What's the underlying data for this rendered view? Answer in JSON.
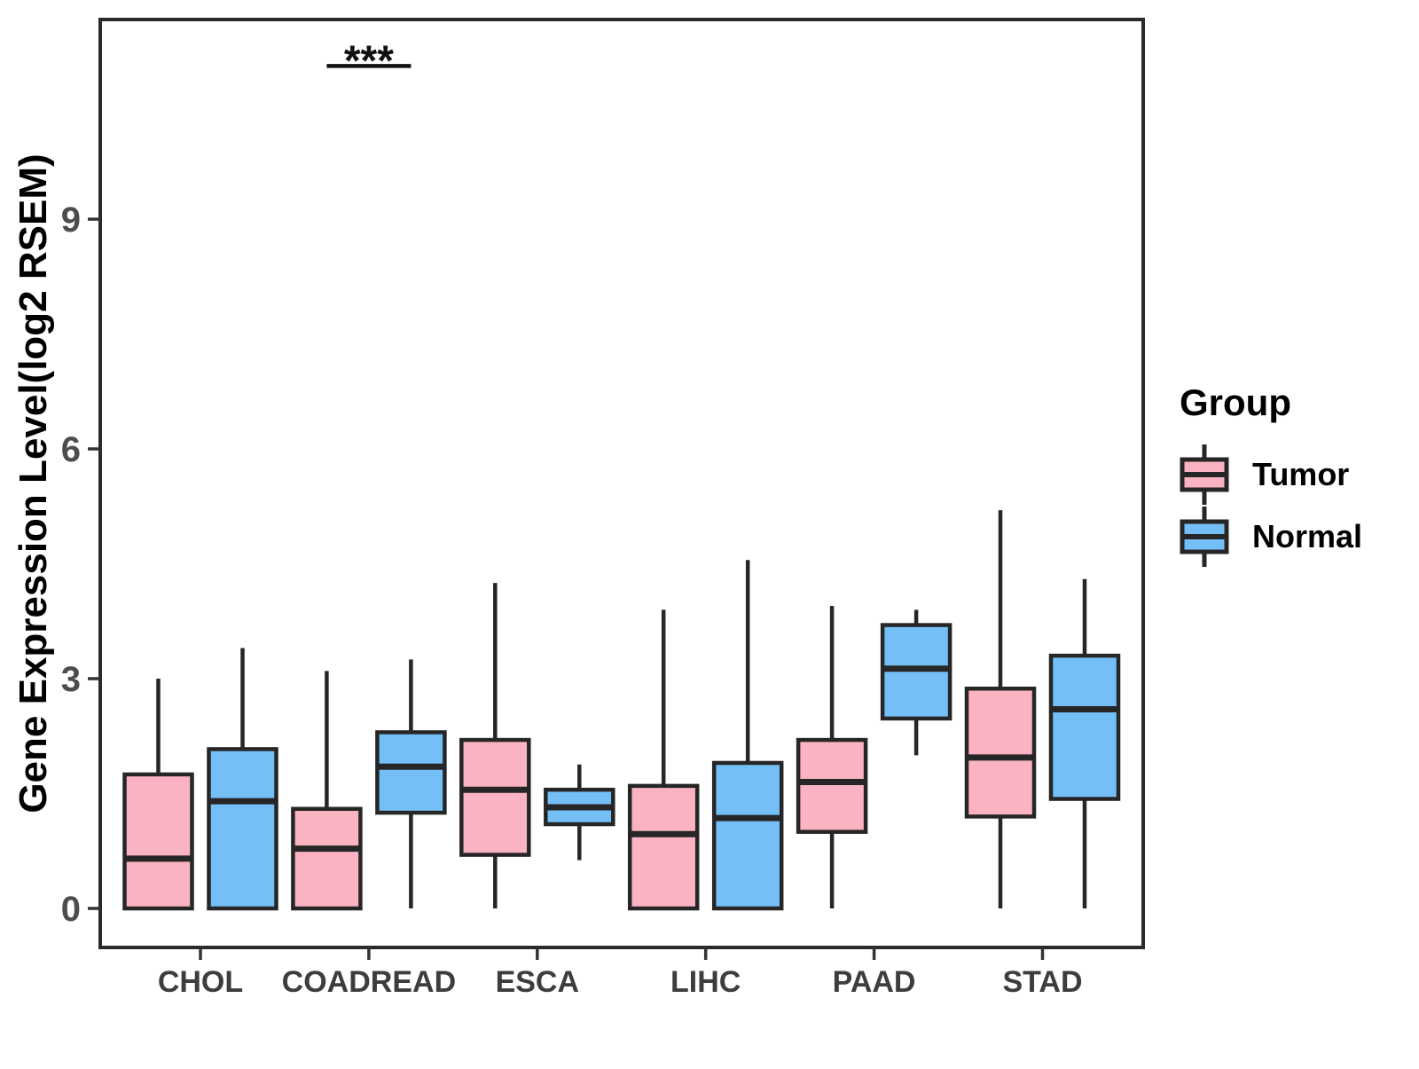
{
  "figure": {
    "background": "#FFFFFF",
    "border_color": "#2A2A2A"
  },
  "axes": {
    "y_title": "Gene Expression Level(log2 RSEM)",
    "y_tick_labels": [
      "0",
      "3",
      "6",
      "9"
    ],
    "y_tick_values": [
      0,
      3,
      6,
      9
    ],
    "x_categories": [
      "CHOL",
      "COADREAD",
      "ESCA",
      "LIHC",
      "PAAD",
      "STAD"
    ]
  },
  "legend": {
    "title": "Group",
    "entries": [
      {
        "label": "Tumor",
        "color": "#FBB3C2"
      },
      {
        "label": "Normal",
        "color": "#74BFF6"
      }
    ]
  },
  "annotations": [
    {
      "text": "***",
      "category_index": 1,
      "y_value": 11.0,
      "meaning": "significance"
    }
  ],
  "chart_data": {
    "type": "boxplot",
    "title": "",
    "xlabel": "",
    "ylabel": "Gene Expression Level(log2 RSEM)",
    "ylim": [
      -0.5,
      11.6
    ],
    "y_ticks": [
      0,
      3,
      6,
      9
    ],
    "grid": false,
    "legend_position": "right",
    "legend_title": "Group",
    "categories": [
      "CHOL",
      "COADREAD",
      "ESCA",
      "LIHC",
      "PAAD",
      "STAD"
    ],
    "series": [
      {
        "name": "Tumor",
        "fill": "#FBB3C2",
        "stroke": "#262626",
        "boxes": [
          {
            "min": 0,
            "q1": 0,
            "median": 0.65,
            "q3": 1.75,
            "max": 3.0
          },
          {
            "min": 0,
            "q1": 0,
            "median": 0.78,
            "q3": 1.3,
            "max": 3.1
          },
          {
            "min": 0,
            "q1": 0.7,
            "median": 1.55,
            "q3": 2.2,
            "max": 4.25
          },
          {
            "min": 0,
            "q1": 0,
            "median": 0.97,
            "q3": 1.6,
            "max": 3.9
          },
          {
            "min": 0,
            "q1": 1.0,
            "median": 1.65,
            "q3": 2.2,
            "max": 3.95
          },
          {
            "min": 0,
            "q1": 1.2,
            "median": 1.97,
            "q3": 2.87,
            "max": 5.2
          }
        ]
      },
      {
        "name": "Normal",
        "fill": "#74BFF6",
        "stroke": "#262626",
        "boxes": [
          {
            "min": 0,
            "q1": 0,
            "median": 1.4,
            "q3": 2.08,
            "max": 3.4
          },
          {
            "min": 0,
            "q1": 1.25,
            "median": 1.85,
            "q3": 2.3,
            "max": 3.25
          },
          {
            "min": 0.63,
            "q1": 1.1,
            "median": 1.32,
            "q3": 1.55,
            "max": 1.88
          },
          {
            "min": 0,
            "q1": 0,
            "median": 1.18,
            "q3": 1.9,
            "max": 4.55
          },
          {
            "min": 2.0,
            "q1": 2.48,
            "median": 3.13,
            "q3": 3.7,
            "max": 3.9
          },
          {
            "min": 0,
            "q1": 1.43,
            "median": 2.6,
            "q3": 3.3,
            "max": 4.3
          }
        ]
      }
    ],
    "significance": [
      {
        "category": "COADREAD",
        "label": "***"
      }
    ]
  }
}
